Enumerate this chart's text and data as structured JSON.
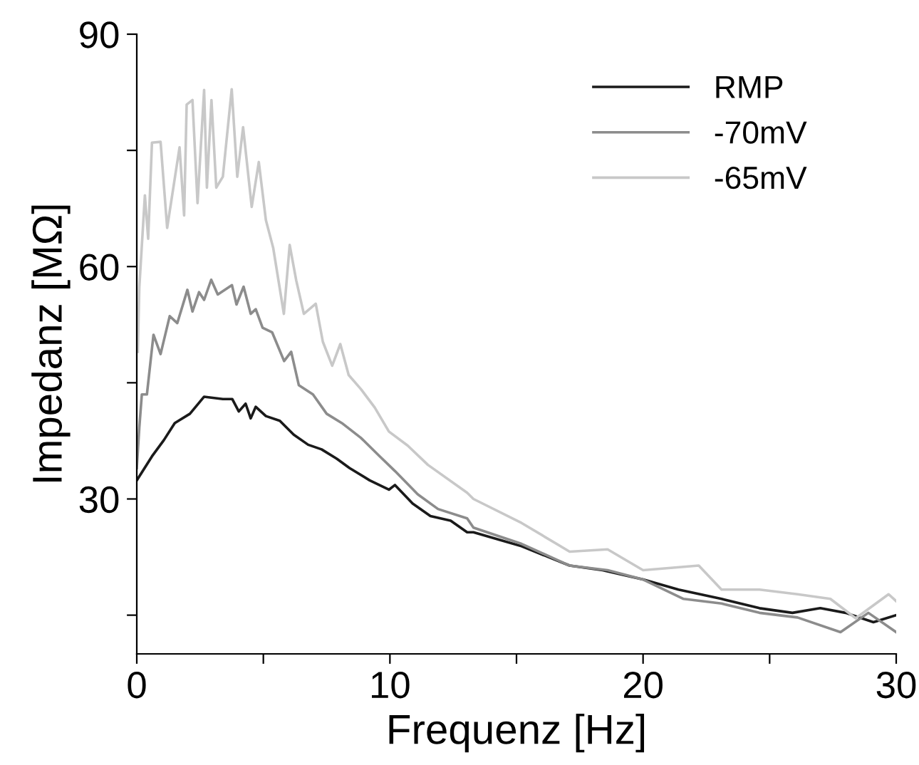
{
  "chart_data": {
    "type": "line",
    "xlabel": "Frequenz [Hz]",
    "ylabel": "Impedanz [MΩ]",
    "xlim": [
      0,
      30
    ],
    "ylim": [
      10,
      90
    ],
    "xticks": [
      0,
      {
        "value": 5,
        "label": null
      },
      10,
      {
        "value": 15,
        "label": null
      },
      20,
      {
        "value": 25,
        "label": null
      },
      30
    ],
    "yticks": [
      {
        "value": 15,
        "label": null
      },
      30,
      {
        "value": 45,
        "label": null
      },
      60,
      {
        "value": 75,
        "label": null
      },
      90
    ],
    "grid": false,
    "legend": "top right",
    "marker": "none",
    "line_style": "solid",
    "series": [
      {
        "name": "RMP",
        "color": "#1a1a1a",
        "x": [
          0,
          0.6,
          1.07,
          1.5,
          2.1,
          2.66,
          3.4,
          3.77,
          4.03,
          4.3,
          4.5,
          4.7,
          5.1,
          5.65,
          6.2,
          6.77,
          7.3,
          7.9,
          8.4,
          9.2,
          9.96,
          10.2,
          10.9,
          11.6,
          12.4,
          13.05,
          13.3,
          15.2,
          17.1,
          18.4,
          20,
          21.4,
          23.1,
          24.6,
          25.9,
          27,
          28,
          29.1,
          30
        ],
        "values": [
          32.4,
          35.5,
          37.6,
          39.8,
          41,
          43.2,
          42.9,
          42.9,
          41.3,
          42.3,
          40.4,
          41.9,
          40.7,
          40.1,
          38.3,
          37,
          36.4,
          35.2,
          34,
          32.4,
          31.2,
          31.8,
          29.4,
          27.8,
          27.2,
          25.7,
          25.7,
          23.9,
          21.4,
          20.8,
          19.6,
          18.3,
          17.1,
          15.9,
          15.3,
          15.9,
          15.3,
          14.1,
          15
        ]
      },
      {
        "name": "-70mV",
        "color": "#8c8c8c",
        "x": [
          0,
          0.1,
          0.2,
          0.4,
          0.66,
          0.94,
          1.3,
          1.6,
          2.0,
          2.2,
          2.46,
          2.66,
          2.94,
          3.2,
          3.76,
          3.94,
          4.22,
          4.5,
          4.7,
          4.97,
          5.35,
          5.82,
          6.1,
          6.4,
          6.96,
          7.5,
          8.1,
          8.85,
          9.6,
          10.2,
          11.1,
          11.9,
          13.05,
          13.3,
          15.2,
          17.1,
          18.6,
          20,
          21.6,
          23.1,
          24.6,
          26.1,
          27.8,
          28.9,
          30
        ],
        "values": [
          34,
          39.2,
          43.5,
          43.5,
          51.2,
          48.7,
          53.6,
          52.7,
          57,
          54.2,
          56.7,
          55.7,
          58.3,
          56.4,
          57.6,
          55.1,
          57.4,
          53.9,
          54.5,
          52.1,
          51.5,
          47.8,
          49,
          44.7,
          43.5,
          41,
          39.8,
          37.9,
          35.5,
          33.6,
          30.6,
          28.7,
          27.5,
          26.3,
          24.2,
          21.4,
          20.8,
          19.6,
          17.1,
          16.5,
          15.3,
          14.7,
          12.8,
          15.3,
          12.8
        ]
      },
      {
        "name": "-65mV",
        "color": "#c8c8c8",
        "x": [
          0.04,
          0.1,
          0.32,
          0.45,
          0.6,
          0.94,
          1.2,
          1.69,
          1.87,
          1.97,
          2.2,
          2.4,
          2.66,
          2.77,
          2.95,
          3.14,
          3.4,
          3.75,
          3.97,
          4.2,
          4.54,
          4.82,
          5.1,
          5.39,
          5.81,
          6.04,
          6.3,
          6.6,
          7.07,
          7.35,
          7.72,
          8.04,
          8.37,
          8.85,
          9.4,
          9.96,
          10.7,
          11.5,
          13.05,
          13.3,
          15.2,
          17.1,
          18.6,
          20,
          22.2,
          23.1,
          24.6,
          26.1,
          27.4,
          28.4,
          29.7,
          30
        ],
        "values": [
          49,
          57.3,
          69.2,
          63.6,
          76,
          76.1,
          65,
          75.4,
          66.6,
          80.9,
          81.5,
          68.2,
          82.8,
          70.2,
          81.5,
          70.2,
          71.6,
          82.9,
          71.6,
          78,
          67.7,
          73.5,
          66,
          62.4,
          53.9,
          62.8,
          58.2,
          53.9,
          55.2,
          50.3,
          47.2,
          50,
          46,
          44.2,
          41.8,
          38.7,
          36.9,
          34.4,
          30.8,
          30,
          26.9,
          23.2,
          23.5,
          20.8,
          21.4,
          18.3,
          18.3,
          17.7,
          17.1,
          14.6,
          17.7,
          16.8
        ]
      }
    ]
  }
}
